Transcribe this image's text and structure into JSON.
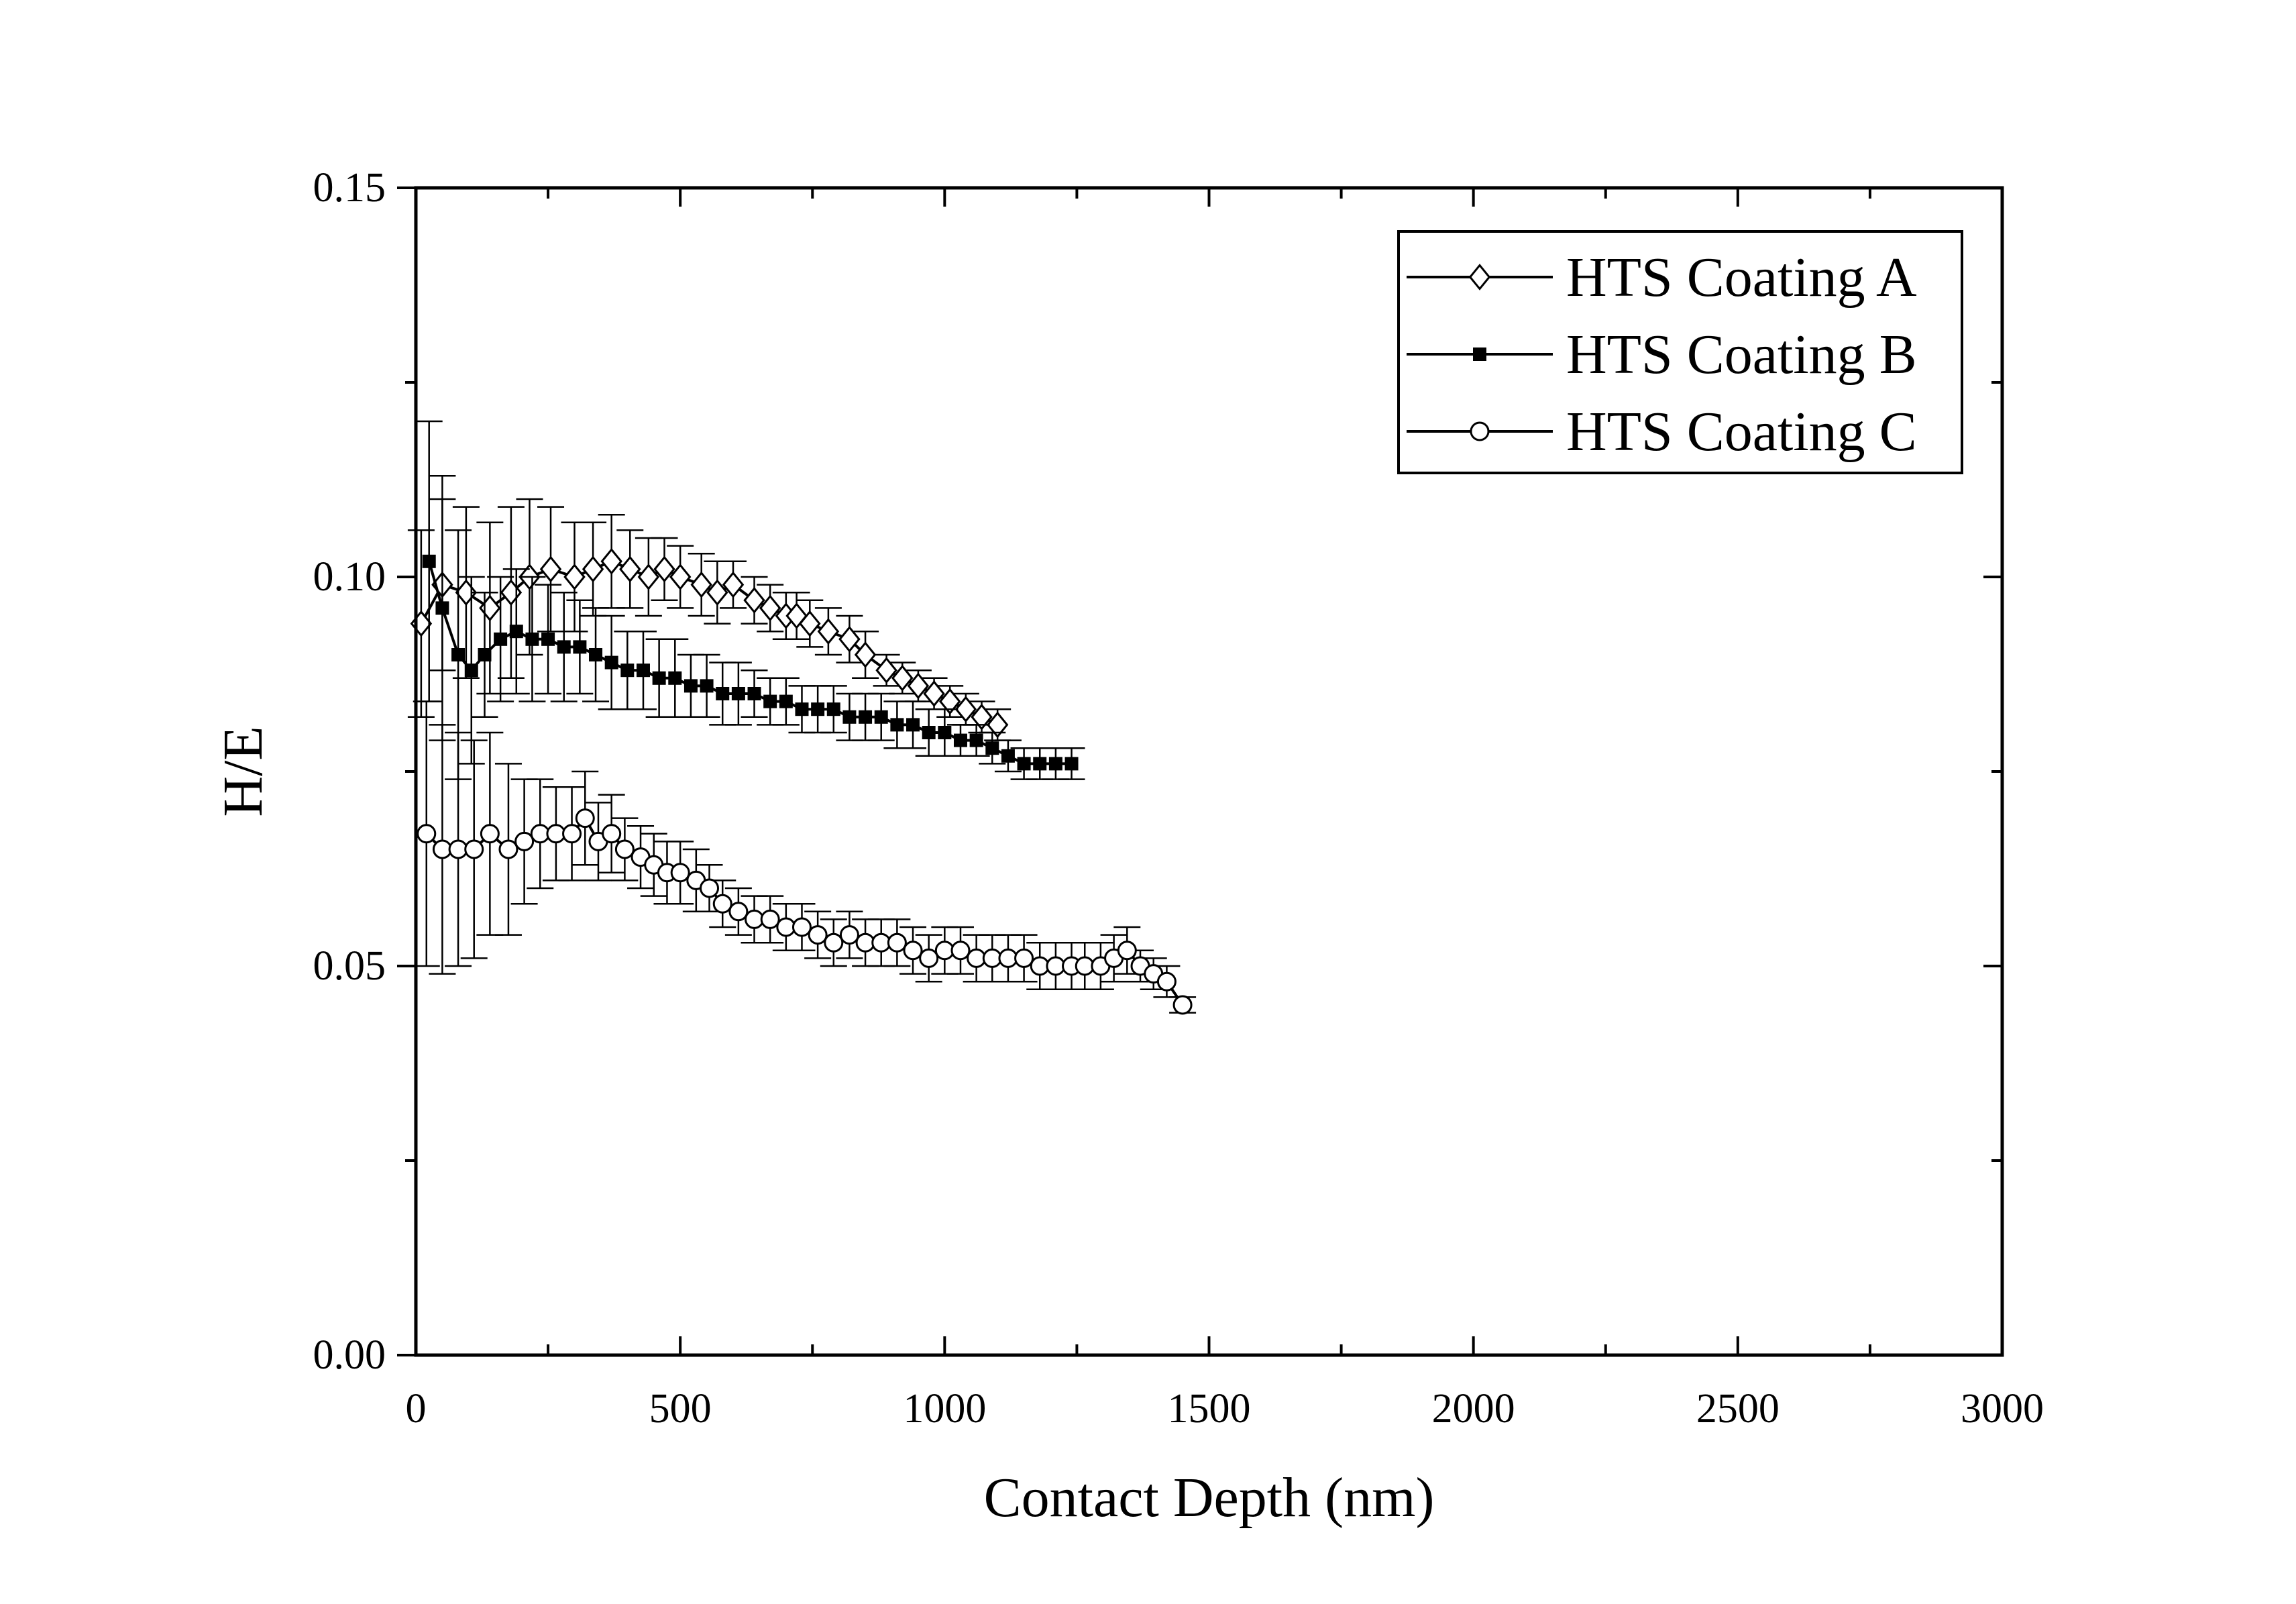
{
  "chart_data": {
    "type": "line",
    "title": "",
    "xlabel": "Contact Depth (nm)",
    "ylabel": "H/E",
    "xlim": [
      0,
      3000
    ],
    "ylim": [
      0,
      0.15
    ],
    "xticks": [
      "0",
      "500",
      "1000",
      "1500",
      "2000",
      "2500",
      "3000"
    ],
    "yticks": [
      "0.00",
      "0.05",
      "0.10",
      "0.15"
    ],
    "grid": false,
    "legend_position": "top-right",
    "series": [
      {
        "name": "HTS Coating A",
        "marker": "diamond-open",
        "color": "#000000",
        "x": [
          10,
          50,
          95,
          140,
          180,
          215,
          255,
          300,
          335,
          370,
          405,
          440,
          470,
          500,
          540,
          570,
          600,
          640,
          670,
          700,
          720,
          745,
          780,
          820,
          850,
          890,
          920,
          950,
          980,
          1010,
          1040,
          1070,
          1100
        ],
        "y": [
          0.094,
          0.099,
          0.098,
          0.096,
          0.098,
          0.1,
          0.101,
          0.1,
          0.101,
          0.102,
          0.101,
          0.1,
          0.101,
          0.1,
          0.099,
          0.098,
          0.099,
          0.097,
          0.096,
          0.095,
          0.095,
          0.094,
          0.093,
          0.092,
          0.09,
          0.088,
          0.087,
          0.086,
          0.085,
          0.084,
          0.083,
          0.082,
          0.081
        ],
        "err": [
          0.012,
          0.011,
          0.011,
          0.011,
          0.011,
          0.01,
          0.008,
          0.007,
          0.006,
          0.006,
          0.005,
          0.005,
          0.004,
          0.004,
          0.004,
          0.004,
          0.003,
          0.003,
          0.003,
          0.003,
          0.003,
          0.003,
          0.003,
          0.003,
          0.003,
          0.002,
          0.002,
          0.002,
          0.002,
          0.002,
          0.002,
          0.002,
          0.002
        ]
      },
      {
        "name": "HTS Coating B",
        "marker": "square-filled",
        "color": "#000000",
        "x": [
          25,
          50,
          80,
          105,
          130,
          160,
          190,
          220,
          250,
          280,
          310,
          340,
          370,
          400,
          430,
          460,
          490,
          520,
          550,
          580,
          610,
          640,
          670,
          700,
          730,
          760,
          790,
          820,
          850,
          880,
          910,
          940,
          970,
          1000,
          1030,
          1060,
          1090,
          1120,
          1150,
          1180,
          1210,
          1240
        ],
        "y": [
          0.102,
          0.096,
          0.09,
          0.088,
          0.09,
          0.092,
          0.093,
          0.092,
          0.092,
          0.091,
          0.091,
          0.09,
          0.089,
          0.088,
          0.088,
          0.087,
          0.087,
          0.086,
          0.086,
          0.085,
          0.085,
          0.085,
          0.084,
          0.084,
          0.083,
          0.083,
          0.083,
          0.082,
          0.082,
          0.082,
          0.081,
          0.081,
          0.08,
          0.08,
          0.079,
          0.079,
          0.078,
          0.077,
          0.076,
          0.076,
          0.076,
          0.076
        ],
        "err": [
          0.018,
          0.017,
          0.016,
          0.012,
          0.008,
          0.008,
          0.008,
          0.008,
          0.007,
          0.007,
          0.006,
          0.006,
          0.006,
          0.005,
          0.005,
          0.005,
          0.005,
          0.004,
          0.004,
          0.004,
          0.004,
          0.003,
          0.003,
          0.003,
          0.003,
          0.003,
          0.003,
          0.003,
          0.003,
          0.003,
          0.003,
          0.003,
          0.003,
          0.003,
          0.002,
          0.002,
          0.002,
          0.002,
          0.002,
          0.002,
          0.002,
          0.002
        ]
      },
      {
        "name": "HTS Coating C",
        "marker": "circle-open",
        "color": "#000000",
        "x": [
          20,
          50,
          80,
          110,
          140,
          175,
          205,
          235,
          265,
          295,
          320,
          345,
          370,
          395,
          425,
          450,
          475,
          500,
          530,
          555,
          580,
          610,
          640,
          670,
          700,
          730,
          760,
          790,
          820,
          850,
          880,
          910,
          940,
          970,
          1000,
          1030,
          1060,
          1090,
          1120,
          1150,
          1180,
          1210,
          1240,
          1265,
          1295,
          1320,
          1345,
          1370,
          1395,
          1420,
          1450
        ],
        "y": [
          0.067,
          0.065,
          0.065,
          0.065,
          0.067,
          0.065,
          0.066,
          0.067,
          0.067,
          0.067,
          0.069,
          0.066,
          0.067,
          0.065,
          0.064,
          0.063,
          0.062,
          0.062,
          0.061,
          0.06,
          0.058,
          0.057,
          0.056,
          0.056,
          0.055,
          0.055,
          0.054,
          0.053,
          0.054,
          0.053,
          0.053,
          0.053,
          0.052,
          0.051,
          0.052,
          0.052,
          0.051,
          0.051,
          0.051,
          0.051,
          0.05,
          0.05,
          0.05,
          0.05,
          0.05,
          0.051,
          0.052,
          0.05,
          0.049,
          0.048,
          0.045
        ],
        "err": [
          0.017,
          0.016,
          0.015,
          0.014,
          0.013,
          0.011,
          0.008,
          0.007,
          0.006,
          0.006,
          0.006,
          0.005,
          0.005,
          0.004,
          0.004,
          0.004,
          0.004,
          0.004,
          0.004,
          0.003,
          0.003,
          0.003,
          0.003,
          0.003,
          0.003,
          0.003,
          0.003,
          0.003,
          0.003,
          0.003,
          0.003,
          0.003,
          0.003,
          0.003,
          0.003,
          0.003,
          0.003,
          0.003,
          0.003,
          0.003,
          0.003,
          0.003,
          0.003,
          0.003,
          0.003,
          0.003,
          0.003,
          0.002,
          0.002,
          0.002,
          0.001
        ]
      }
    ]
  }
}
